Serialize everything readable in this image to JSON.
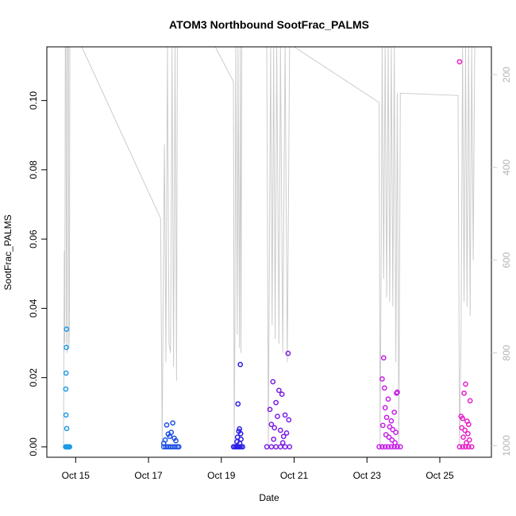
{
  "chart_data": {
    "type": "scatter",
    "title": "ATOM3 Northbound SootFrac_PALMS",
    "xlabel": "Date",
    "ylabel": "SootFrac_PALMS",
    "xlim": [
      "2017-10-14T05:00",
      "2017-10-26T10:00"
    ],
    "ylim": [
      -0.003,
      0.1155
    ],
    "x_ticks": [
      {
        "date": "2017-10-15",
        "label": "Oct 15"
      },
      {
        "date": "2017-10-17",
        "label": "Oct 17"
      },
      {
        "date": "2017-10-19",
        "label": "Oct 19"
      },
      {
        "date": "2017-10-21",
        "label": "Oct 21"
      },
      {
        "date": "2017-10-23",
        "label": "Oct 23"
      },
      {
        "date": "2017-10-25",
        "label": "Oct 25"
      }
    ],
    "y_ticks": [
      0.0,
      0.02,
      0.04,
      0.06,
      0.08,
      0.1
    ],
    "y_tick_labels": [
      "0.00",
      "0.02",
      "0.04",
      "0.06",
      "0.08",
      "0.10"
    ],
    "y2_range": [
      1025,
      140
    ],
    "y2_ticks": [
      200,
      400,
      600,
      800,
      1000
    ],
    "y2_tick_labels": [
      "200",
      "400",
      "600",
      "800",
      "1000"
    ],
    "y2_color": "#cccccc",
    "grid": false,
    "legend": "none",
    "marker": "open-circle",
    "flights": [
      {
        "color": "#1e9be6",
        "points": [
          [
            "2017-10-14T18:00",
            0.034
          ],
          [
            "2017-10-14T17:50",
            0.0287
          ],
          [
            "2017-10-14T17:40",
            0.0213
          ],
          [
            "2017-10-14T17:30",
            0.0167
          ],
          [
            "2017-10-14T17:35",
            0.0092
          ],
          [
            "2017-10-14T18:05",
            0.0053
          ],
          [
            "2017-10-14T17:20",
            0.0
          ],
          [
            "2017-10-14T17:40",
            0.0
          ],
          [
            "2017-10-14T18:00",
            0.0
          ],
          [
            "2017-10-14T18:20",
            0.0
          ],
          [
            "2017-10-14T18:40",
            0.0
          ],
          [
            "2017-10-14T19:00",
            0.0
          ],
          [
            "2017-10-14T19:20",
            0.0
          ],
          [
            "2017-10-14T19:40",
            0.0
          ],
          [
            "2017-10-14T20:00",
            0.0
          ]
        ]
      },
      {
        "color": "#1e50e6",
        "points": [
          [
            "2017-10-17T12:00",
            0.0063
          ],
          [
            "2017-10-17T16:00",
            0.0069
          ],
          [
            "2017-10-17T13:00",
            0.0037
          ],
          [
            "2017-10-17T15:00",
            0.0042
          ],
          [
            "2017-10-17T11:00",
            0.002
          ],
          [
            "2017-10-17T14:00",
            0.003
          ],
          [
            "2017-10-17T17:00",
            0.0025
          ],
          [
            "2017-10-17T10:00",
            0.001
          ],
          [
            "2017-10-17T18:00",
            0.0018
          ],
          [
            "2017-10-17T10:00",
            0.0
          ],
          [
            "2017-10-17T11:30",
            0.0
          ],
          [
            "2017-10-17T13:00",
            0.0
          ],
          [
            "2017-10-17T14:30",
            0.0
          ],
          [
            "2017-10-17T16:00",
            0.0
          ],
          [
            "2017-10-17T17:30",
            0.0
          ],
          [
            "2017-10-17T19:00",
            0.0
          ],
          [
            "2017-10-17T20:00",
            0.0
          ]
        ]
      },
      {
        "color": "#2b1ee6",
        "points": [
          [
            "2017-10-19T12:30",
            0.0238
          ],
          [
            "2017-10-19T11:00",
            0.0124
          ],
          [
            "2017-10-19T12:00",
            0.0052
          ],
          [
            "2017-10-19T11:30",
            0.0045
          ],
          [
            "2017-10-19T12:45",
            0.0038
          ],
          [
            "2017-10-19T10:40",
            0.0028
          ],
          [
            "2017-10-19T13:00",
            0.0022
          ],
          [
            "2017-10-19T10:20",
            0.0015
          ],
          [
            "2017-10-19T12:10",
            0.001
          ],
          [
            "2017-10-19T08:00",
            0.0
          ],
          [
            "2017-10-19T09:00",
            0.0
          ],
          [
            "2017-10-19T10:00",
            0.0
          ],
          [
            "2017-10-19T11:00",
            0.0
          ],
          [
            "2017-10-19T12:00",
            0.0
          ],
          [
            "2017-10-19T13:00",
            0.0
          ],
          [
            "2017-10-19T14:00",
            0.0
          ]
        ]
      },
      {
        "color": "#7c1ee6",
        "points": [
          [
            "2017-10-20T20:00",
            0.027
          ],
          [
            "2017-10-20T10:00",
            0.0188
          ],
          [
            "2017-10-20T14:00",
            0.0163
          ],
          [
            "2017-10-20T16:00",
            0.0152
          ],
          [
            "2017-10-20T12:00",
            0.0128
          ],
          [
            "2017-10-20T08:00",
            0.0108
          ],
          [
            "2017-10-20T18:00",
            0.0092
          ],
          [
            "2017-10-20T13:00",
            0.0088
          ],
          [
            "2017-10-20T20:30",
            0.0078
          ],
          [
            "2017-10-20T09:00",
            0.0065
          ],
          [
            "2017-10-20T11:00",
            0.0055
          ],
          [
            "2017-10-20T15:00",
            0.0048
          ],
          [
            "2017-10-20T19:00",
            0.004
          ],
          [
            "2017-10-20T17:00",
            0.003
          ],
          [
            "2017-10-20T10:30",
            0.0022
          ],
          [
            "2017-10-20T16:30",
            0.0012
          ],
          [
            "2017-10-20T06:00",
            0.0
          ],
          [
            "2017-10-20T09:00",
            0.0
          ],
          [
            "2017-10-20T12:00",
            0.0
          ],
          [
            "2017-10-20T15:00",
            0.0
          ],
          [
            "2017-10-20T18:00",
            0.0
          ],
          [
            "2017-10-20T21:00",
            0.0
          ]
        ]
      },
      {
        "color": "#c51ee6",
        "points": [
          [
            "2017-10-23T11:00",
            0.0257
          ],
          [
            "2017-10-23T10:00",
            0.0196
          ],
          [
            "2017-10-23T11:30",
            0.017
          ],
          [
            "2017-10-23T20:00",
            0.0158
          ],
          [
            "2017-10-23T19:30",
            0.0155
          ],
          [
            "2017-10-23T14:00",
            0.0138
          ],
          [
            "2017-10-23T12:00",
            0.0113
          ],
          [
            "2017-10-23T18:00",
            0.01
          ],
          [
            "2017-10-23T13:00",
            0.0085
          ],
          [
            "2017-10-23T16:00",
            0.0075
          ],
          [
            "2017-10-23T10:30",
            0.0062
          ],
          [
            "2017-10-23T15:00",
            0.0058
          ],
          [
            "2017-10-23T17:00",
            0.005
          ],
          [
            "2017-10-23T19:00",
            0.0042
          ],
          [
            "2017-10-23T12:30",
            0.0035
          ],
          [
            "2017-10-23T14:30",
            0.0028
          ],
          [
            "2017-10-23T16:30",
            0.002
          ],
          [
            "2017-10-23T18:30",
            0.0012
          ],
          [
            "2017-10-23T08:00",
            0.0
          ],
          [
            "2017-10-23T10:00",
            0.0
          ],
          [
            "2017-10-23T12:00",
            0.0
          ],
          [
            "2017-10-23T14:00",
            0.0
          ],
          [
            "2017-10-23T16:00",
            0.0
          ],
          [
            "2017-10-23T18:00",
            0.0
          ],
          [
            "2017-10-23T20:00",
            0.0
          ],
          [
            "2017-10-23T22:00",
            0.0
          ]
        ]
      },
      {
        "color": "#e61ec8",
        "points": [
          [
            "2017-10-25T13:00",
            0.1112
          ],
          [
            "2017-10-25T17:00",
            0.0181
          ],
          [
            "2017-10-25T16:00",
            0.0155
          ],
          [
            "2017-10-25T20:00",
            0.0133
          ],
          [
            "2017-10-25T14:00",
            0.0088
          ],
          [
            "2017-10-25T15:00",
            0.0082
          ],
          [
            "2017-10-25T18:00",
            0.0074
          ],
          [
            "2017-10-25T19:00",
            0.0065
          ],
          [
            "2017-10-25T14:30",
            0.0055
          ],
          [
            "2017-10-25T16:30",
            0.0048
          ],
          [
            "2017-10-25T18:30",
            0.0038
          ],
          [
            "2017-10-25T15:30",
            0.0028
          ],
          [
            "2017-10-25T19:30",
            0.002
          ],
          [
            "2017-10-25T17:30",
            0.0012
          ],
          [
            "2017-10-25T13:00",
            0.0
          ],
          [
            "2017-10-25T15:00",
            0.0
          ],
          [
            "2017-10-25T17:00",
            0.0
          ],
          [
            "2017-10-25T19:00",
            0.0
          ],
          [
            "2017-10-25T21:00",
            0.0
          ]
        ]
      }
    ],
    "pressure_trace": {
      "color": "#cccccc",
      "points": [
        [
          "2017-10-14T16:00",
          1000
        ],
        [
          "2017-10-14T16:30",
          580
        ],
        [
          "2017-10-14T16:50",
          780
        ],
        [
          "2017-10-14T17:10",
          140
        ],
        [
          "2017-10-14T17:40",
          140
        ],
        [
          "2017-10-14T18:00",
          740
        ],
        [
          "2017-10-14T18:20",
          800
        ],
        [
          "2017-10-14T18:40",
          140
        ],
        [
          "2017-10-14T19:10",
          140
        ],
        [
          "2017-10-14T19:30",
          790
        ],
        [
          "2017-10-14T19:50",
          750
        ],
        [
          "2017-10-14T20:10",
          140
        ],
        [
          "2017-10-15T04:00",
          140
        ],
        [
          "2017-10-17T08:00",
          510
        ],
        [
          "2017-10-17T09:00",
          1000
        ],
        [
          "2017-10-17T09:30",
          770
        ],
        [
          "2017-10-17T10:30",
          350
        ],
        [
          "2017-10-17T11:30",
          820
        ],
        [
          "2017-10-17T12:30",
          140
        ],
        [
          "2017-10-17T13:30",
          780
        ],
        [
          "2017-10-17T14:30",
          800
        ],
        [
          "2017-10-17T15:30",
          140
        ],
        [
          "2017-10-17T16:30",
          830
        ],
        [
          "2017-10-17T17:30",
          140
        ],
        [
          "2017-10-17T18:30",
          860
        ],
        [
          "2017-10-17T19:00",
          140
        ],
        [
          "2017-10-18T00:00",
          140
        ],
        [
          "2017-10-18T20:00",
          140
        ],
        [
          "2017-10-19T08:00",
          215
        ],
        [
          "2017-10-19T08:30",
          1000
        ],
        [
          "2017-10-19T09:00",
          730
        ],
        [
          "2017-10-19T09:30",
          140
        ],
        [
          "2017-10-19T10:30",
          760
        ],
        [
          "2017-10-19T11:00",
          140
        ],
        [
          "2017-10-19T12:00",
          790
        ],
        [
          "2017-10-19T12:30",
          140
        ],
        [
          "2017-10-19T13:00",
          800
        ],
        [
          "2017-10-19T13:30",
          140
        ],
        [
          "2017-10-19T14:00",
          140
        ],
        [
          "2017-10-19T20:00",
          140
        ],
        [
          "2017-10-20T06:00",
          140
        ],
        [
          "2017-10-20T07:00",
          1000
        ],
        [
          "2017-10-20T07:30",
          710
        ],
        [
          "2017-10-20T08:30",
          140
        ],
        [
          "2017-10-20T09:30",
          740
        ],
        [
          "2017-10-20T10:30",
          140
        ],
        [
          "2017-10-20T11:30",
          770
        ],
        [
          "2017-10-20T12:30",
          140
        ],
        [
          "2017-10-20T14:00",
          780
        ],
        [
          "2017-10-20T15:00",
          140
        ],
        [
          "2017-10-20T16:30",
          800
        ],
        [
          "2017-10-20T18:00",
          140
        ],
        [
          "2017-10-20T19:30",
          820
        ],
        [
          "2017-10-20T21:00",
          140
        ],
        [
          "2017-10-21T00:00",
          140
        ],
        [
          "2017-10-23T08:00",
          260
        ],
        [
          "2017-10-23T08:40",
          1000
        ],
        [
          "2017-10-23T09:20",
          620
        ],
        [
          "2017-10-23T10:00",
          140
        ],
        [
          "2017-10-23T11:00",
          640
        ],
        [
          "2017-10-23T12:00",
          140
        ],
        [
          "2017-10-23T13:00",
          680
        ],
        [
          "2017-10-23T14:00",
          140
        ],
        [
          "2017-10-23T15:00",
          690
        ],
        [
          "2017-10-23T16:00",
          140
        ],
        [
          "2017-10-23T17:00",
          700
        ],
        [
          "2017-10-23T18:00",
          140
        ],
        [
          "2017-10-23T19:00",
          820
        ],
        [
          "2017-10-23T20:00",
          240
        ],
        [
          "2017-10-23T21:00",
          1000
        ],
        [
          "2017-10-23T22:00",
          240
        ],
        [
          "2017-10-25T12:00",
          245
        ],
        [
          "2017-10-25T13:00",
          1000
        ],
        [
          "2017-10-25T14:00",
          760
        ],
        [
          "2017-10-25T15:00",
          140
        ],
        [
          "2017-10-25T16:00",
          690
        ],
        [
          "2017-10-25T17:00",
          140
        ],
        [
          "2017-10-25T18:00",
          700
        ],
        [
          "2017-10-25T19:00",
          140
        ],
        [
          "2017-10-25T20:00",
          720
        ],
        [
          "2017-10-25T21:00",
          140
        ],
        [
          "2017-10-25T22:00",
          600
        ],
        [
          "2017-10-25T23:00",
          140
        ]
      ]
    }
  }
}
